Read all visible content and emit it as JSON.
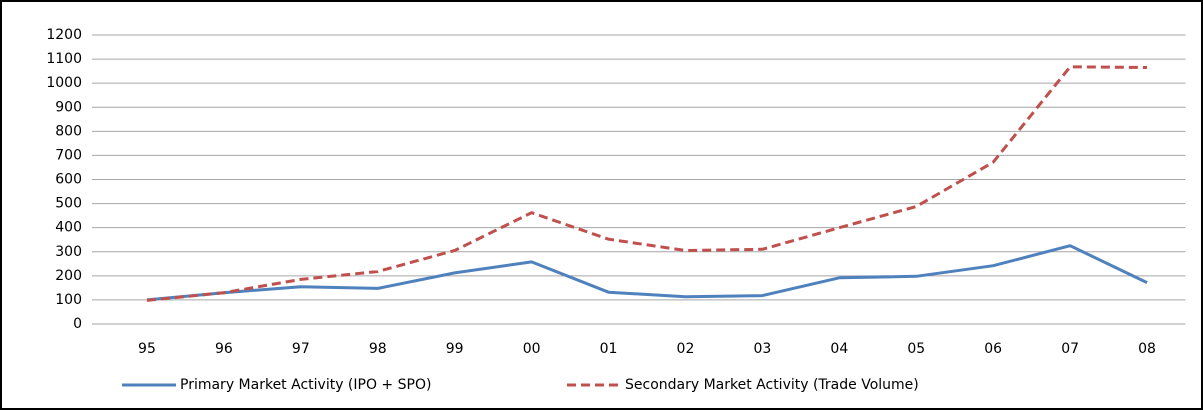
{
  "chart_data": {
    "type": "line",
    "categories": [
      "95",
      "96",
      "97",
      "98",
      "99",
      "00",
      "01",
      "02",
      "03",
      "04",
      "05",
      "06",
      "07",
      "08"
    ],
    "series": [
      {
        "name": "Primary Market Activity (IPO + SPO)",
        "color": "#4f81bd",
        "dash": false,
        "values": [
          100,
          130,
          155,
          148,
          212,
          258,
          132,
          113,
          118,
          192,
          198,
          242,
          325,
          172
        ]
      },
      {
        "name": "Secondary Market Activity (Trade Volume)",
        "color": "#c0504d",
        "dash": true,
        "values": [
          98,
          130,
          185,
          218,
          305,
          462,
          352,
          305,
          310,
          400,
          488,
          672,
          1068,
          1065
        ]
      }
    ],
    "ylim": [
      0,
      1200
    ],
    "yticks": [
      0,
      100,
      200,
      300,
      400,
      500,
      600,
      700,
      800,
      900,
      1000,
      1100,
      1200
    ],
    "grid": true,
    "legend": "bottom"
  }
}
